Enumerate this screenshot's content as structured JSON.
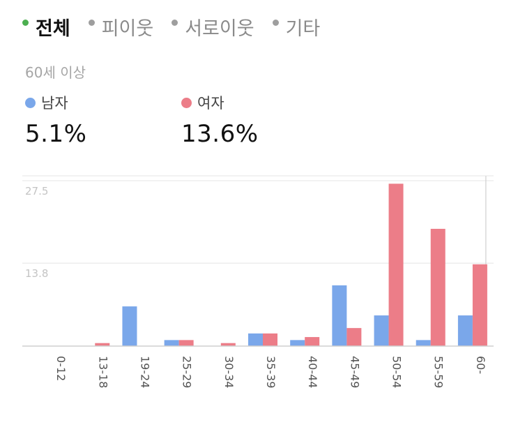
{
  "tabs": [
    {
      "label": "전체",
      "active": true
    },
    {
      "label": "피이웃",
      "active": false
    },
    {
      "label": "서로이웃",
      "active": false
    },
    {
      "label": "기타",
      "active": false
    }
  ],
  "range_label": "60세 이상",
  "legend": {
    "male": {
      "label": "남자",
      "value": "5.1%",
      "color": "#7aa7ea"
    },
    "female": {
      "label": "여자",
      "value": "13.6%",
      "color": "#ec7d88"
    }
  },
  "chart_data": {
    "type": "bar",
    "categories": [
      "0-12",
      "13-18",
      "19-24",
      "25-29",
      "30-34",
      "35-39",
      "40-44",
      "45-49",
      "50-54",
      "55-59",
      "60-"
    ],
    "series": [
      {
        "name": "남자",
        "color": "#7aa7ea",
        "values": [
          0,
          0,
          6.6,
          1.0,
          0,
          2.1,
          1.0,
          10.1,
          5.1,
          1.0,
          5.1
        ]
      },
      {
        "name": "여자",
        "color": "#ec7d88",
        "values": [
          0,
          0.5,
          0,
          1.0,
          0.5,
          2.1,
          1.5,
          3.0,
          27.0,
          19.5,
          13.6
        ]
      }
    ],
    "yticks": [
      13.8,
      27.5
    ],
    "ylim": [
      0,
      27.5
    ],
    "grid": true,
    "highlight_category": "60-"
  }
}
